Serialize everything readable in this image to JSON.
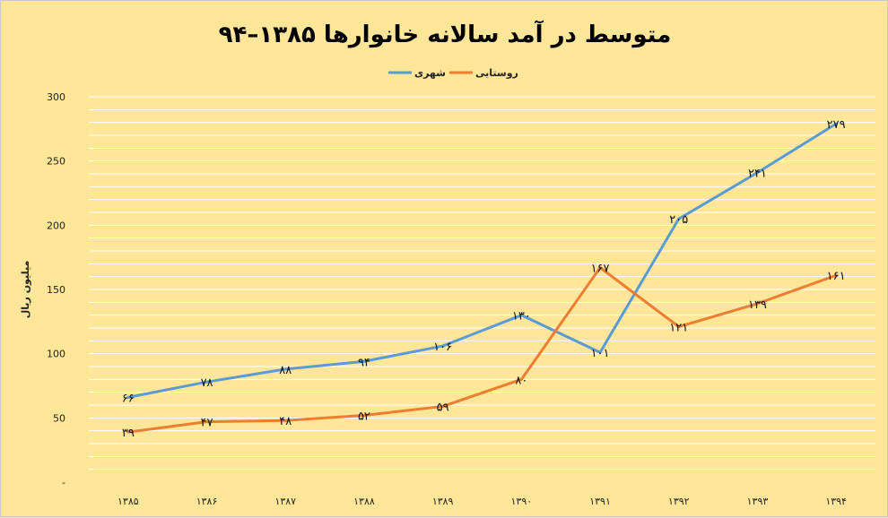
{
  "chart_data": {
    "type": "line",
    "title": "متوسط در آمد سالانه خانوارها ۱۳۸۵–۹۴",
    "ylabel": "میلیون ریال",
    "xlabel": "",
    "categories": [
      "۱۳۸۵",
      "۱۳۸۶",
      "۱۳۸۷",
      "۱۳۸۸",
      "۱۳۸۹",
      "۱۳۹۰",
      "۱۳۹۱",
      "۱۳۹۲",
      "۱۳۹۳",
      "۱۳۹۴"
    ],
    "ylim": [
      0,
      300
    ],
    "y_ticks": [
      {
        "value": 0,
        "label": "-"
      },
      {
        "value": 50,
        "label": "50"
      },
      {
        "value": 100,
        "label": "100"
      },
      {
        "value": 150,
        "label": "150"
      },
      {
        "value": 200,
        "label": "200"
      },
      {
        "value": 250,
        "label": "250"
      },
      {
        "value": 300,
        "label": "300"
      }
    ],
    "grid": "horizontal",
    "legend_position": "top-center",
    "series": [
      {
        "name": "شهری",
        "color": "#5b9bd5",
        "values": [
          66,
          78,
          88,
          94,
          106,
          130,
          101,
          205,
          241,
          279
        ],
        "labels": [
          "۶۶",
          "۷۸",
          "۸۸",
          "۹۴",
          "۱۰۶",
          "۱۳۰",
          "۱۰۱",
          "۲۰۵",
          "۲۴۱",
          "۲۷۹"
        ]
      },
      {
        "name": "روستایی",
        "color": "#ed7d31",
        "values": [
          39,
          47,
          48,
          52,
          59,
          80,
          167,
          121,
          139,
          161
        ],
        "labels": [
          "۳۹",
          "۴۷",
          "۴۸",
          "۵۲",
          "۵۹",
          "۸۰",
          "۱۶۷",
          "۱۲۱",
          "۱۳۹",
          "۱۶۱"
        ]
      }
    ]
  }
}
